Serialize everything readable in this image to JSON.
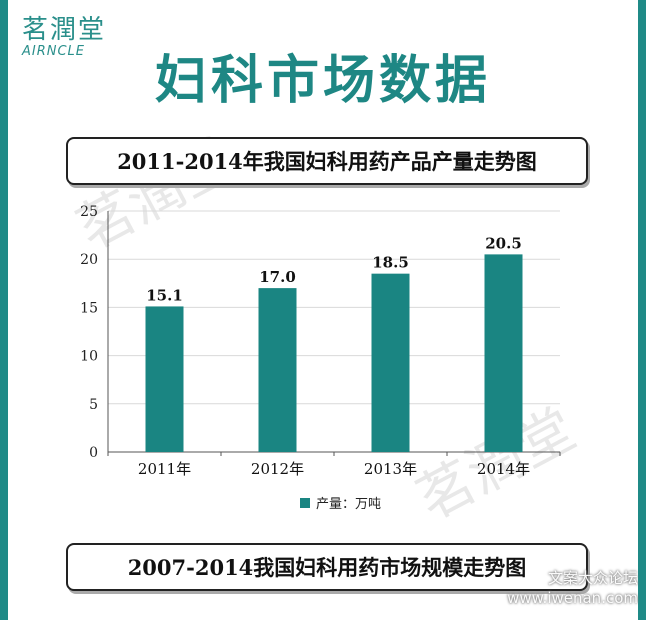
{
  "logo": {
    "cn": "茗潤堂",
    "en": "AIRNCLE"
  },
  "page_title": "妇科市场数据",
  "chart_title": "2011-2014年我国妇科用药产品产量走势图",
  "next_section_title": "2007-2014我国妇科用药市场规模走势图",
  "site_mark": {
    "line1": "文案大众论坛",
    "line2": "www.iwenan.com"
  },
  "colors": {
    "accent": "#1f8a87",
    "bar": "#1a8582"
  },
  "chart_data": {
    "type": "bar",
    "title": "2011-2014年我国妇科用药产品产量走势图",
    "categories": [
      "2011年",
      "2012年",
      "2013年",
      "2014年"
    ],
    "series": [
      {
        "name": "产量：万吨",
        "values": [
          15.1,
          17.0,
          18.5,
          20.5
        ]
      }
    ],
    "value_labels": [
      "15.1",
      "17.0",
      "18.5",
      "20.5"
    ],
    "yticks": [
      "0",
      "5",
      "10",
      "15",
      "20",
      "25"
    ],
    "ylim": [
      0,
      25
    ],
    "grid": true,
    "legend": "bottom"
  }
}
